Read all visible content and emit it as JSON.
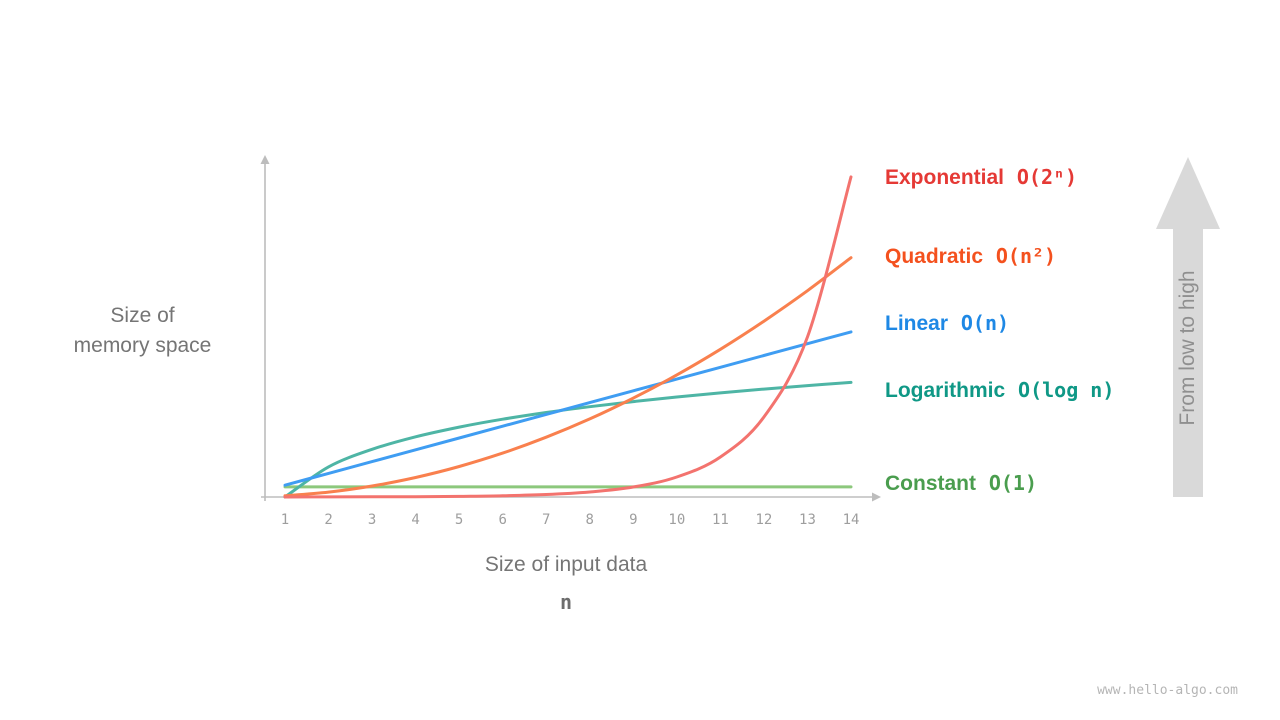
{
  "page": {
    "background": "#ffffff",
    "watermark": "www.hello-algo.com"
  },
  "chart_data": {
    "type": "line",
    "title": "",
    "xlabel": "Size of input data",
    "xlabel_symbol": "n",
    "ylabel_lines": [
      "Size of",
      "memory space"
    ],
    "x_ticks": [
      1,
      2,
      3,
      4,
      5,
      6,
      7,
      8,
      9,
      10,
      11,
      12,
      13,
      14
    ],
    "xlim": [
      1,
      14
    ],
    "grid": false,
    "legend_position": "right",
    "axis_color": "#bdbdbd",
    "tick_color": "#9e9e9e",
    "series": [
      {
        "name": "Exponential",
        "notation": "O(2ⁿ)",
        "values": [
          2,
          4,
          8,
          16,
          32,
          64,
          128,
          256,
          512,
          1024,
          2048,
          4096,
          8192,
          16384
        ],
        "peak_fraction": 0.95,
        "label_color": "#e53935",
        "curve_color": "#f3736e"
      },
      {
        "name": "Quadratic",
        "notation": "O(n²)",
        "values": [
          1,
          4,
          9,
          16,
          25,
          36,
          49,
          64,
          81,
          100,
          121,
          144,
          169,
          196
        ],
        "peak_fraction": 0.71,
        "label_color": "#f4511e",
        "curve_color": "#f9804e"
      },
      {
        "name": "Linear",
        "notation": "O(n)",
        "values": [
          1,
          2,
          3,
          4,
          5,
          6,
          7,
          8,
          9,
          10,
          11,
          12,
          13,
          14
        ],
        "peak_fraction": 0.49,
        "label_color": "#1e88e5",
        "curve_color": "#3f9df2"
      },
      {
        "name": "Logarithmic",
        "notation": "O(log n)",
        "values": [
          0,
          0.693,
          1.099,
          1.386,
          1.609,
          1.792,
          1.946,
          2.079,
          2.197,
          2.303,
          2.398,
          2.485,
          2.565,
          2.639
        ],
        "peak_fraction": 0.34,
        "label_color": "#0f9886",
        "curve_color": "#4eb5a5"
      },
      {
        "name": "Constant",
        "notation": "O(1)",
        "values": [
          1,
          1,
          1,
          1,
          1,
          1,
          1,
          1,
          1,
          1,
          1,
          1,
          1,
          1
        ],
        "peak_fraction": 0.03,
        "label_color": "#4a9d4e",
        "curve_color": "#8cc87c"
      }
    ],
    "arrow": {
      "label": "From low to high",
      "fill": "#d9d9d9",
      "text_color": "#8f8f8f"
    }
  }
}
